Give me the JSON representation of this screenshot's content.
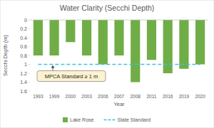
{
  "chart_data": {
    "type": "bar",
    "title": "Water Clarity (Secchi Depth)",
    "x_label": "Year",
    "y_label": "Secchi Depth (m)",
    "categories": [
      "1993",
      "1999",
      "2000",
      "2003",
      "2006",
      "2007",
      "2008",
      "2011",
      "2016",
      "2019",
      "2020"
    ],
    "series": [
      {
        "name": "Lake Rose",
        "type": "bar",
        "color": "#70ad47",
        "values": [
          0.8,
          0.8,
          0.5,
          0.8,
          1.0,
          0.8,
          1.4,
          0.9,
          1.2,
          1.1,
          1.0
        ]
      },
      {
        "name": "State Standard",
        "type": "line",
        "line_style": "dashed",
        "color": "#41c0e3",
        "values": [
          1,
          1,
          1,
          1,
          1,
          1,
          1,
          1,
          1,
          1,
          1
        ]
      }
    ],
    "ylim": [
      1.6,
      0
    ],
    "yticks": [
      0,
      0.2,
      0.4,
      0.6,
      0.8,
      1,
      1.2,
      1.4,
      1.6
    ],
    "grid": false,
    "legend": "bottom",
    "annotation": {
      "text": "MPCA Standard ≥ 1 m"
    }
  }
}
